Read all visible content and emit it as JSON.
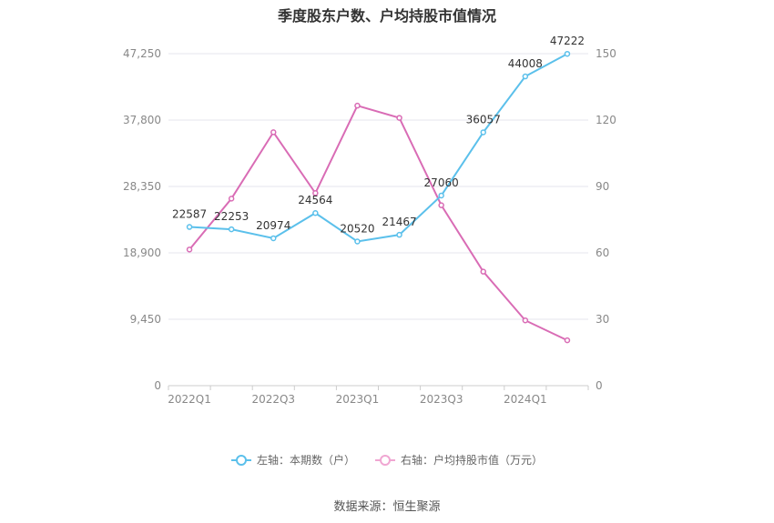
{
  "chart_data": {
    "type": "line",
    "title": "季度股东户数、户均持股市值情况",
    "x_tick_labels": [
      "2022Q1",
      "2022Q3",
      "2023Q1",
      "2023Q3",
      "2024Q1"
    ],
    "categories": [
      "2022Q1",
      "2022Q2",
      "2022Q3",
      "2022Q4",
      "2023Q1",
      "2023Q2",
      "2023Q3",
      "2023Q4",
      "2024Q1",
      "2024Q2"
    ],
    "left_axis": {
      "ticks": [
        "0",
        "9,450",
        "18,900",
        "28,350",
        "37,800",
        "47,250"
      ],
      "min": 0,
      "max": 47250
    },
    "right_axis": {
      "ticks": [
        "0",
        "30",
        "60",
        "90",
        "120",
        "150"
      ],
      "min": 0,
      "max": 150
    },
    "series": [
      {
        "name": "左轴：本期数（户）",
        "axis": "left",
        "color": "#5bc0eb",
        "values": [
          22587,
          22253,
          20974,
          24564,
          20520,
          21467,
          27060,
          36057,
          44008,
          47222
        ],
        "labels": [
          "22587",
          "22253",
          "20974",
          "24564",
          "20520",
          "21467",
          "27060",
          "36057",
          "44008",
          "47222"
        ]
      },
      {
        "name": "右轴：户均持股市值（万元）",
        "axis": "right",
        "color": "#d96cb5",
        "values": [
          61.5,
          84.5,
          114.5,
          87.0,
          126.5,
          121.0,
          81.5,
          51.5,
          29.5,
          20.5
        ]
      }
    ],
    "grid": true,
    "legend_position": "bottom"
  },
  "source": "数据来源：恒生聚源"
}
